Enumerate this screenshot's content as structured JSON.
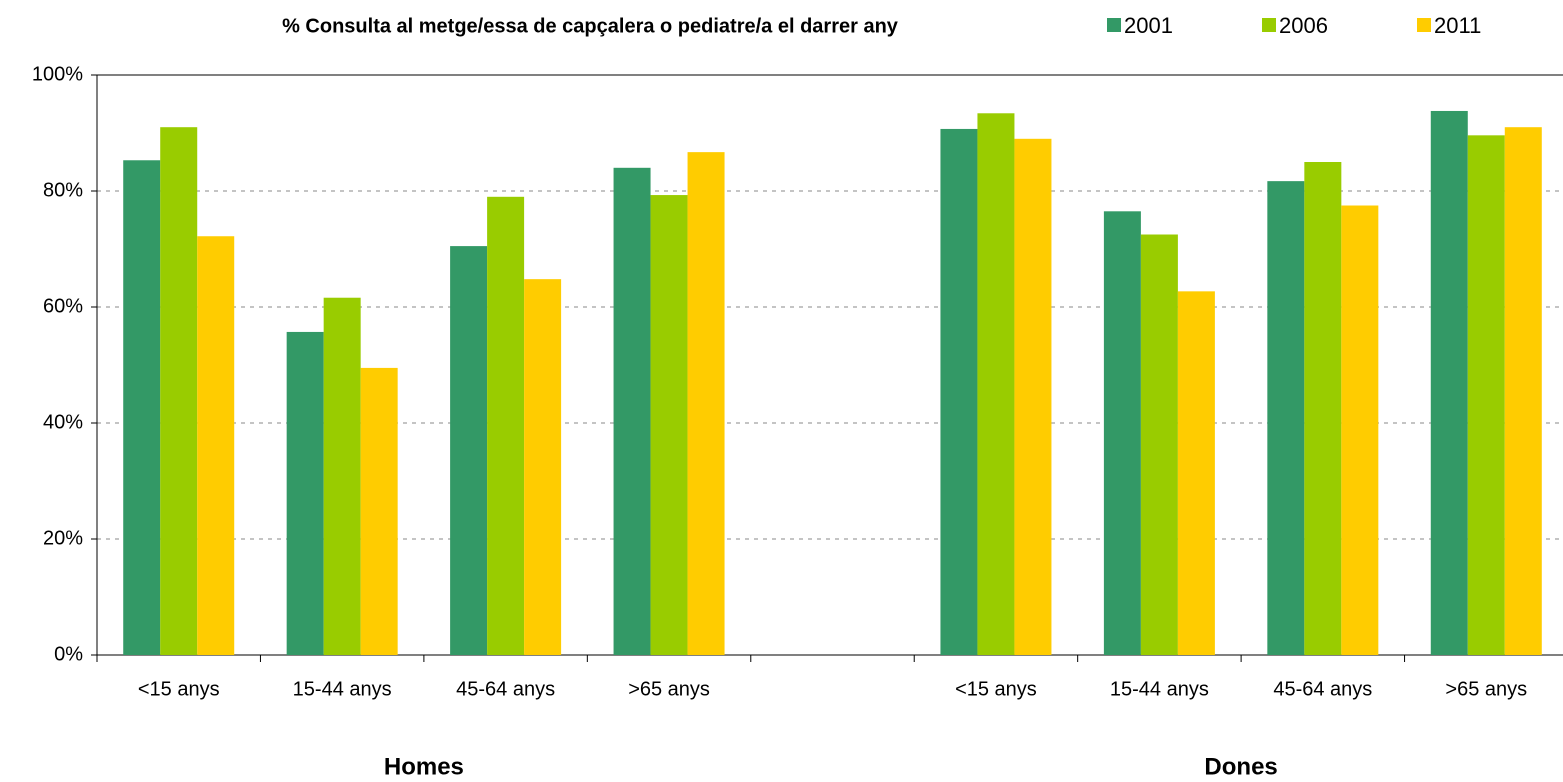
{
  "chart_data": {
    "type": "bar",
    "title": "% Consulta al metge/essa de capçalera o pediatre/a el darrer any",
    "categories": [
      "<15 anys",
      "15-44 anys",
      "45-64 anys",
      ">65 anys",
      null,
      "<15 anys",
      "15-44 anys",
      "45-64 anys",
      ">65 anys"
    ],
    "groups": [
      "Homes",
      "Dones"
    ],
    "series": [
      {
        "name": "2001",
        "color": "#339966",
        "values": [
          85.3,
          55.7,
          70.5,
          84.0,
          null,
          90.7,
          76.5,
          81.7,
          93.8
        ]
      },
      {
        "name": "2006",
        "color": "#99cc00",
        "values": [
          91.0,
          61.6,
          79.0,
          79.3,
          null,
          93.4,
          72.5,
          85.0,
          89.6
        ]
      },
      {
        "name": "2011",
        "color": "#ffcc00",
        "values": [
          72.2,
          49.5,
          64.8,
          86.7,
          null,
          89.0,
          62.7,
          77.5,
          91.0
        ]
      }
    ],
    "ylim": [
      0,
      100
    ],
    "yticks": [
      {
        "value": 0,
        "label": "0%"
      },
      {
        "value": 20,
        "label": "20%"
      },
      {
        "value": 40,
        "label": "40%"
      },
      {
        "value": 60,
        "label": "60%"
      },
      {
        "value": 80,
        "label": "80%"
      },
      {
        "value": 100,
        "label": "100%"
      }
    ],
    "grid": true,
    "legend": "top-right"
  }
}
